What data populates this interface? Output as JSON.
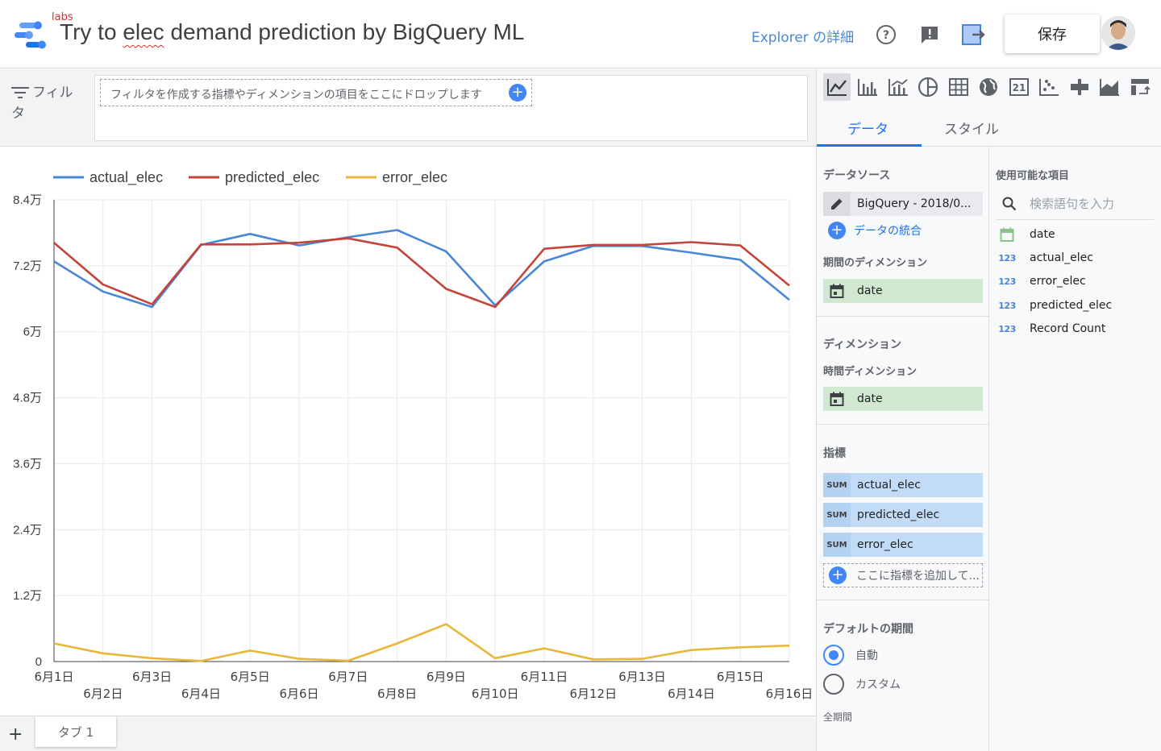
{
  "header": {
    "labs": "labs",
    "title_prefix": "Try to ",
    "title_squiggle": "elec",
    "title_suffix": " demand prediction by BigQuery ML",
    "explorer_link": "Explorer の詳細",
    "save_label": "保存"
  },
  "filter": {
    "label": "フィルタ",
    "hint": "フィルタを作成する指標やディメンションの項目をここにドロップします"
  },
  "tabs": {
    "add": "+",
    "tab1": "タブ 1"
  },
  "panel": {
    "tab_data": "データ",
    "tab_style": "スタイル",
    "datasource_title": "データソース",
    "datasource_name": "BigQuery - 2018/0...",
    "blend_link": "データの統合",
    "period_dim_title": "期間のディメンション",
    "period_dim_value": "date",
    "dimension_title": "ディメンション",
    "time_dim_title": "時間ディメンション",
    "time_dim_value": "date",
    "metrics_title": "指標",
    "metrics": [
      {
        "agg": "SUM",
        "name": "actual_elec"
      },
      {
        "agg": "SUM",
        "name": "predicted_elec"
      },
      {
        "agg": "SUM",
        "name": "error_elec"
      }
    ],
    "add_metric": "ここに指標を追加して...",
    "default_period_title": "デフォルトの期間",
    "radio_auto": "自動",
    "radio_custom": "カスタム",
    "all_period": "全期間",
    "fields_title": "使用可能な項目",
    "search_placeholder": "検索語句を入力",
    "fields": [
      {
        "type": "date",
        "name": "date"
      },
      {
        "type": "123",
        "name": "actual_elec"
      },
      {
        "type": "123",
        "name": "error_elec"
      },
      {
        "type": "123",
        "name": "predicted_elec"
      },
      {
        "type": "123",
        "name": "Record Count"
      }
    ]
  },
  "colors": {
    "actual": "#4a86d6",
    "predicted": "#c5443a",
    "error": "#e8b73a",
    "accent": "#1a73e8"
  },
  "chart_data": {
    "type": "line",
    "categories": [
      "6月1日",
      "6月2日",
      "6月3日",
      "6月4日",
      "6月5日",
      "6月6日",
      "6月7日",
      "6月8日",
      "6月9日",
      "6月10日",
      "6月11日",
      "6月12日",
      "6月13日",
      "6月14日",
      "6月15日",
      "6月16日"
    ],
    "y_ticks": [
      "0",
      "1.2万",
      "2.4万",
      "3.6万",
      "4.8万",
      "6万",
      "7.2万",
      "8.4万"
    ],
    "ylim": [
      0,
      84000
    ],
    "grid": true,
    "legend_position": "top-left",
    "series": [
      {
        "name": "actual_elec",
        "color": "#4a86d6",
        "values": [
          72800,
          67300,
          64500,
          75800,
          77800,
          75700,
          77200,
          78500,
          74600,
          64800,
          72800,
          75600,
          75600,
          74400,
          73100,
          65800
        ]
      },
      {
        "name": "predicted_elec",
        "color": "#c5443a",
        "values": [
          76200,
          68600,
          65000,
          75900,
          75900,
          76200,
          77000,
          75300,
          67800,
          64500,
          75100,
          75800,
          75800,
          76300,
          75700,
          68400
        ]
      },
      {
        "name": "error_elec",
        "color": "#e8b73a",
        "values": [
          3300,
          1500,
          600,
          100,
          2000,
          500,
          150,
          3300,
          6800,
          600,
          2400,
          400,
          500,
          2100,
          2600,
          2900
        ]
      }
    ]
  }
}
